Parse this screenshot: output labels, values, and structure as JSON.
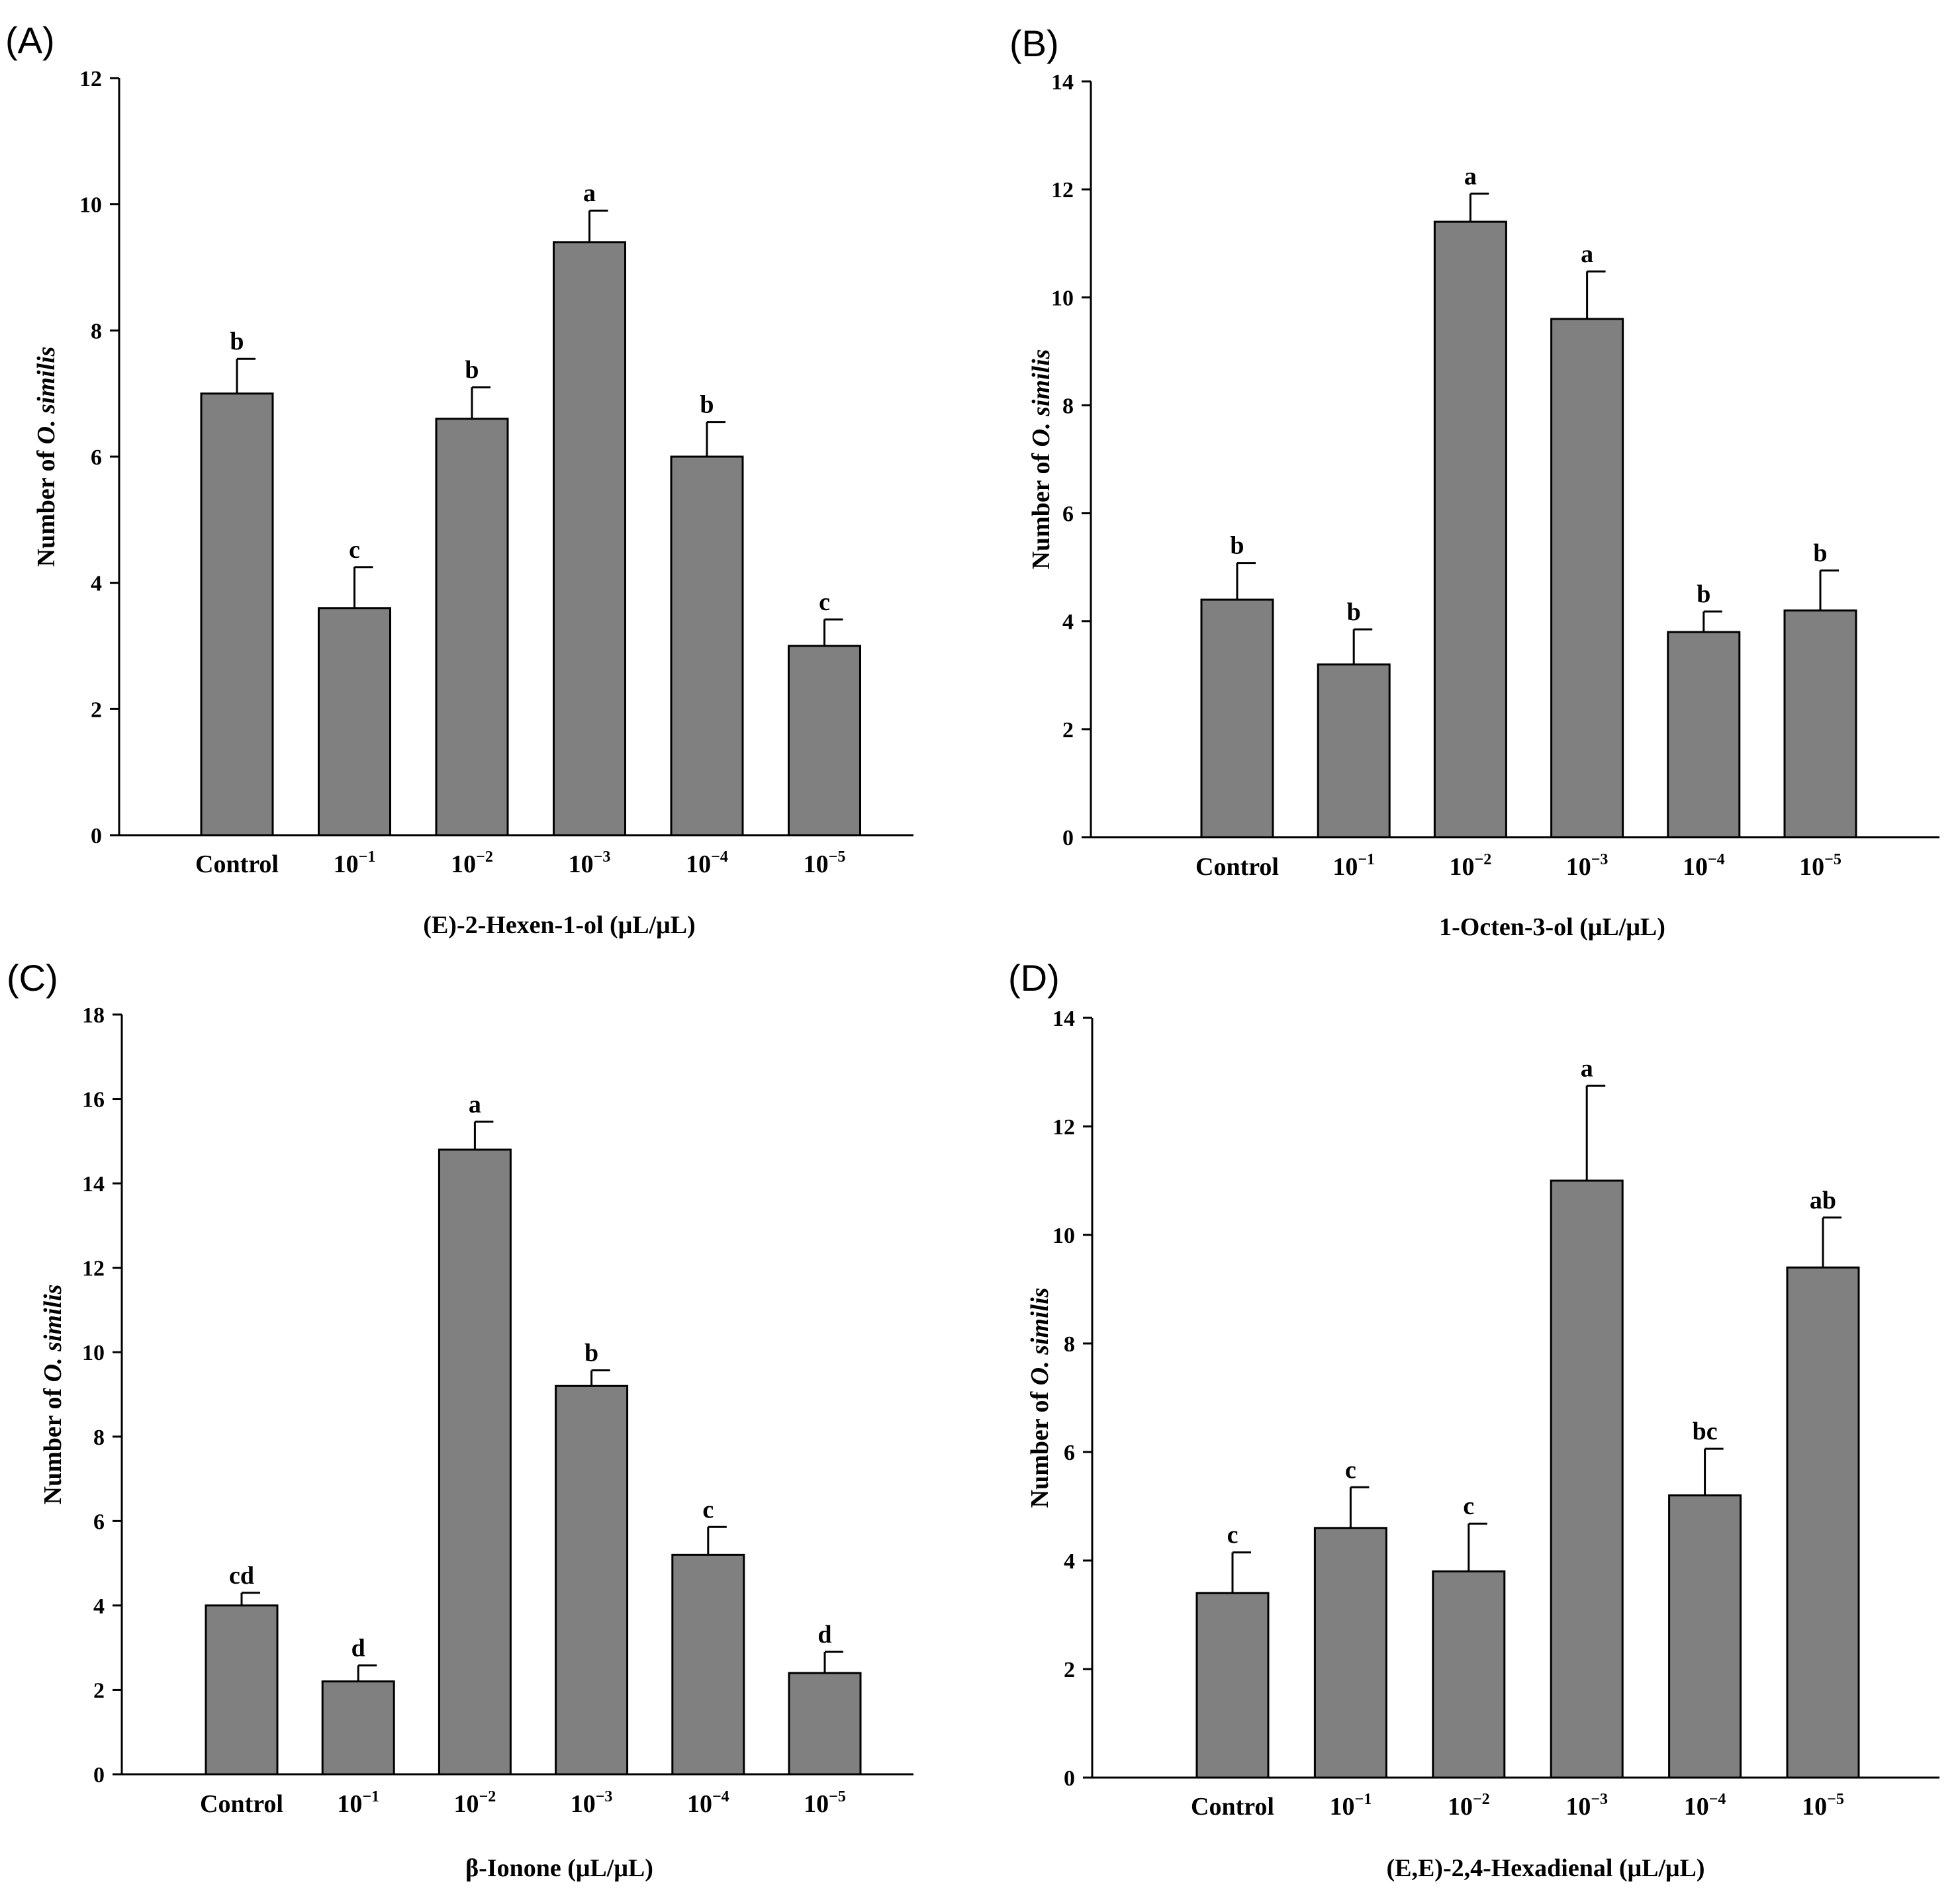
{
  "colors": {
    "bar_fill": "#808080",
    "stroke": "#000000",
    "background": "#ffffff"
  },
  "chart_data": [
    {
      "type": "bar",
      "panel": "(A)",
      "title": "",
      "xlabel": "(E)-2-Hexen-1-ol (μL/μL)",
      "ylabel_prefix": "Number of ",
      "ylabel_species": "O. similis",
      "ylim": [
        0,
        12
      ],
      "yticks": [
        0,
        2,
        4,
        6,
        8,
        10,
        12
      ],
      "categories": [
        {
          "base": "Control",
          "exp": ""
        },
        {
          "base": "10",
          "exp": "−1"
        },
        {
          "base": "10",
          "exp": "−2"
        },
        {
          "base": "10",
          "exp": "−3"
        },
        {
          "base": "10",
          "exp": "−4"
        },
        {
          "base": "10",
          "exp": "−5"
        }
      ],
      "values": [
        7.0,
        3.6,
        6.6,
        9.4,
        6.0,
        3.0
      ],
      "errors": [
        0.55,
        0.65,
        0.5,
        0.5,
        0.55,
        0.42
      ],
      "significance": [
        "b",
        "c",
        "b",
        "a",
        "b",
        "c"
      ]
    },
    {
      "type": "bar",
      "panel": "(B)",
      "title": "",
      "xlabel": "1-Octen-3-ol (μL/μL)",
      "ylabel_prefix": "Number of ",
      "ylabel_species": "O. similis",
      "ylim": [
        0,
        14
      ],
      "yticks": [
        0,
        2,
        4,
        6,
        8,
        10,
        12,
        14
      ],
      "categories": [
        {
          "base": "Control",
          "exp": ""
        },
        {
          "base": "10",
          "exp": "−1"
        },
        {
          "base": "10",
          "exp": "−2"
        },
        {
          "base": "10",
          "exp": "−3"
        },
        {
          "base": "10",
          "exp": "−4"
        },
        {
          "base": "10",
          "exp": "−5"
        }
      ],
      "values": [
        4.4,
        3.2,
        11.4,
        9.6,
        3.8,
        4.2
      ],
      "errors": [
        0.68,
        0.65,
        0.52,
        0.88,
        0.38,
        0.74
      ],
      "significance": [
        "b",
        "b",
        "a",
        "a",
        "b",
        "b"
      ]
    },
    {
      "type": "bar",
      "panel": "(C)",
      "title": "",
      "xlabel": "β-Ionone (μL/μL)",
      "ylabel_prefix": "Number of ",
      "ylabel_species": "O. similis",
      "ylim": [
        0,
        18
      ],
      "yticks": [
        0,
        2,
        4,
        6,
        8,
        10,
        12,
        14,
        16,
        18
      ],
      "categories": [
        {
          "base": "Control",
          "exp": ""
        },
        {
          "base": "10",
          "exp": "−1"
        },
        {
          "base": "10",
          "exp": "−2"
        },
        {
          "base": "10",
          "exp": "−3"
        },
        {
          "base": "10",
          "exp": "−4"
        },
        {
          "base": "10",
          "exp": "−5"
        }
      ],
      "values": [
        4.0,
        2.2,
        14.8,
        9.2,
        5.2,
        2.4
      ],
      "errors": [
        0.3,
        0.38,
        0.66,
        0.37,
        0.66,
        0.5
      ],
      "significance": [
        "cd",
        "d",
        "a",
        "b",
        "c",
        "d"
      ]
    },
    {
      "type": "bar",
      "panel": "(D)",
      "title": "",
      "xlabel": "(E,E)-2,4-Hexadienal (μL/μL)",
      "ylabel_prefix": "Number of ",
      "ylabel_species": "O. similis",
      "ylim": [
        0,
        14
      ],
      "yticks": [
        0,
        2,
        4,
        6,
        8,
        10,
        12,
        14
      ],
      "categories": [
        {
          "base": "Control",
          "exp": ""
        },
        {
          "base": "10",
          "exp": "−1"
        },
        {
          "base": "10",
          "exp": "−2"
        },
        {
          "base": "10",
          "exp": "−3"
        },
        {
          "base": "10",
          "exp": "−4"
        },
        {
          "base": "10",
          "exp": "−5"
        }
      ],
      "values": [
        3.4,
        4.6,
        3.8,
        11.0,
        5.2,
        9.4
      ],
      "errors": [
        0.75,
        0.75,
        0.88,
        1.75,
        0.86,
        0.92
      ],
      "significance": [
        "c",
        "c",
        "c",
        "a",
        "bc",
        "ab"
      ]
    }
  ]
}
